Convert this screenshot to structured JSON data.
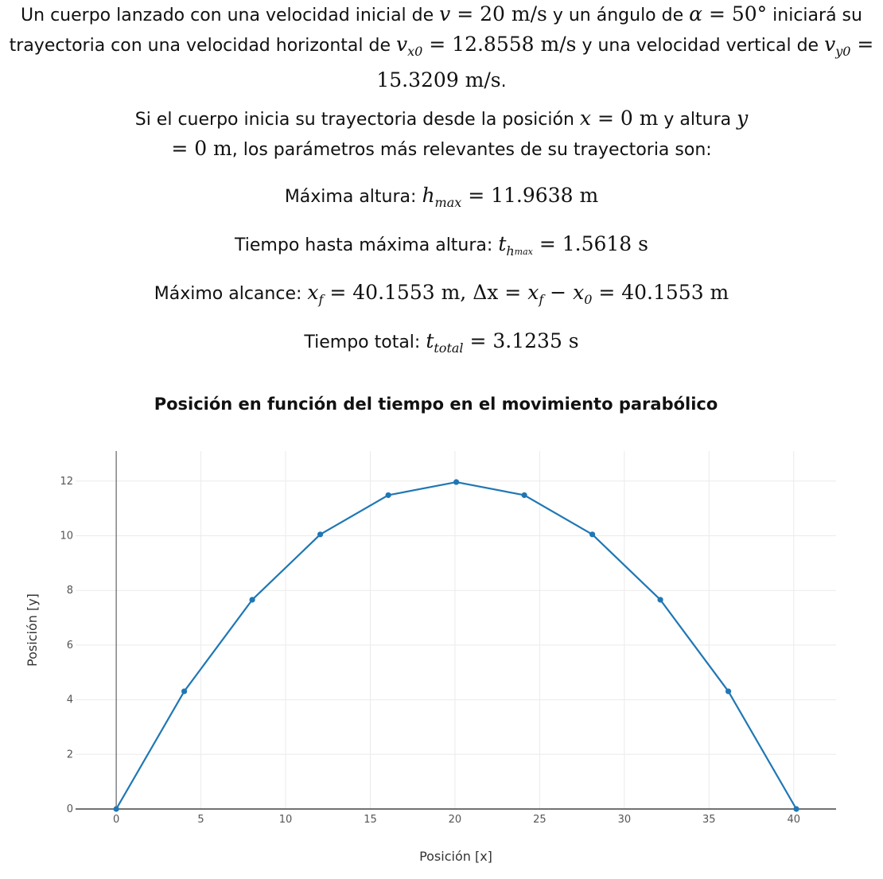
{
  "intro": {
    "t1": "Un cuerpo lanzado con una velocidad inicial de ",
    "v_sym": "v",
    "v_val": " = 20 m/s",
    "t2": " y un ángulo de ",
    "alpha_sym": "α",
    "alpha_val": " = 50°",
    "t3": " iniciará su trayectoria con una velocidad horizontal de ",
    "vx_sym": "v",
    "vx_sub": "x0",
    "vx_val": " = 12.8558 m/s",
    "t4": " y una velocidad vertical de ",
    "vy_sym": "v",
    "vy_sub": "y0",
    "vy_val": " = 15.3209 m/s",
    "t5": "."
  },
  "start": {
    "t1": "Si el cuerpo inicia su trayectoria desde la posición ",
    "x_sym": "x",
    "x_val": " = 0 m",
    "t2": " y altura ",
    "y_sym": "y",
    "y_val": " = 0 m",
    "t3": ", los parámetros más relevantes de su trayectoria son:"
  },
  "params": {
    "hmax_label": "Máxima altura: ",
    "hmax_sym": "h",
    "hmax_sub": "max",
    "hmax_val": " = 11.9638 m",
    "thmax_label": "Tiempo hasta máxima altura: ",
    "thmax_sym": "t",
    "thmax_sub": "h",
    "thmax_subsub": "max",
    "thmax_val": " = 1.5618 s",
    "xf_label": "Máximo alcance: ",
    "xf_sym": "x",
    "xf_sub": "f",
    "xf_val": " = 40.1553 m, ",
    "dx_expr": "Δx = ",
    "dx_xf": "x",
    "dx_xf_sub": "f",
    "dx_minus": " − ",
    "dx_x0": "x",
    "dx_x0_sub": "0",
    "dx_val": " = 40.1553 m",
    "ttot_label": "Tiempo total: ",
    "ttot_sym": "t",
    "ttot_sub": "total",
    "ttot_val": " = 3.1235 s"
  },
  "chart_data": {
    "type": "line",
    "title": "Posición en función del tiempo en el movimiento parabólico",
    "xlabel": "Posición [x]",
    "ylabel": "Posición [y]",
    "xlim": [
      -2.4,
      42.5
    ],
    "ylim": [
      0,
      13.1
    ],
    "xticks": [
      0,
      5,
      10,
      15,
      20,
      25,
      30,
      35,
      40
    ],
    "yticks": [
      0,
      2,
      4,
      6,
      8,
      10,
      12
    ],
    "grid": true,
    "line_color": "#1f77b4",
    "series": [
      {
        "x": [
          0,
          4.0155,
          8.0311,
          12.0466,
          16.0621,
          20.0777,
          24.0932,
          28.1087,
          32.1242,
          36.1398,
          40.1553
        ],
        "y": [
          0,
          4.307,
          7.657,
          10.049,
          11.485,
          11.964,
          11.485,
          10.049,
          7.657,
          4.307,
          0
        ]
      }
    ]
  }
}
